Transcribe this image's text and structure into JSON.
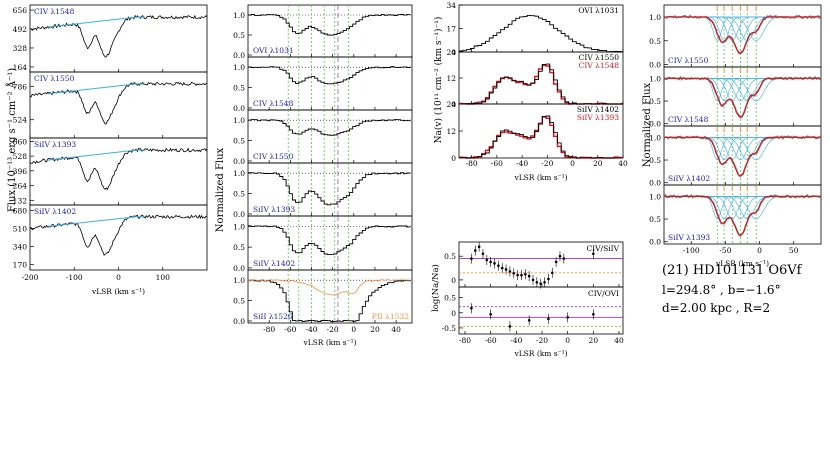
{
  "colors": {
    "data": "#000000",
    "fit": "#3aaee6",
    "blue_label": "#2020c0",
    "red": "#e0141e",
    "orange": "#ff8c3c",
    "green_dot": "#37c837",
    "purple": "#9b30c8",
    "grey": "#777777"
  },
  "caption": {
    "line1": "(21) HD101131 O6Vf",
    "line2": "l=294.8° , b=−1.6°",
    "line3": "d=2.00 kpc , R=2"
  },
  "chart_data": [
    {
      "type": "line",
      "title": "",
      "ylabel": "Flux (10⁻¹³ erg s⁻¹ cm⁻² Å⁻¹)",
      "xlabel": "vLSR (km s⁻¹)",
      "xlim": [
        -200,
        200
      ],
      "xticks": [
        -200,
        -100,
        0,
        100
      ],
      "panels": [
        {
          "label": "CIV λ1548",
          "yticks": [
            164,
            328,
            492,
            656
          ],
          "ylim": [
            120,
            700
          ]
        },
        {
          "label": "CIV λ1550",
          "yticks": [
            524,
            786
          ],
          "ylim": [
            380,
            900
          ]
        },
        {
          "label": "SiIV λ1393",
          "yticks": [
            132,
            264,
            396,
            528,
            660
          ],
          "ylim": [
            90,
            690
          ]
        },
        {
          "label": "SiIV λ1402",
          "yticks": [
            170,
            340,
            510,
            680
          ],
          "ylim": [
            120,
            730
          ]
        }
      ]
    },
    {
      "type": "line",
      "ylabel": "Normalized Flux",
      "xlabel": "vLSR (km s⁻¹)",
      "xlim": [
        -100,
        55
      ],
      "xticks": [
        -80,
        -60,
        -40,
        -20,
        0,
        20,
        40
      ],
      "panels": [
        {
          "label": "OVI λ1031"
        },
        {
          "label": "CIV λ1548"
        },
        {
          "label": "CIV λ1550"
        },
        {
          "label": "SiIV λ1393"
        },
        {
          "label": "SiIV λ1402"
        },
        {
          "label": "SiII λ1526",
          "label2": "PII λ1532"
        }
      ]
    },
    {
      "type": "line",
      "ylabel": "Na(v) (10¹¹ cm⁻² (km s⁻¹)⁻¹)",
      "xlabel": "vLSR (km s⁻¹)",
      "xlim": [
        -90,
        40
      ],
      "xticks": [
        -80,
        -60,
        -40,
        -20,
        0,
        20,
        40
      ],
      "panels": [
        {
          "labels": [
            "OVI λ1031"
          ],
          "yticks": [
            0,
            17,
            34
          ]
        },
        {
          "labels": [
            "CIV λ1550",
            "CIV λ1548"
          ],
          "yticks": [
            0,
            12,
            24
          ]
        },
        {
          "labels": [
            "SiIV λ1402",
            "SiIV λ1393"
          ],
          "yticks": [
            0,
            12,
            24
          ]
        }
      ]
    },
    {
      "type": "scatter",
      "ylabel": "log(Na/Na)",
      "xlabel": "vLSR (km s⁻¹)",
      "xlim": [
        -80,
        40
      ],
      "panels": [
        {
          "label": "CIV/SiIV",
          "yticks": [
            0.5,
            0.0
          ],
          "ylim": [
            -0.15,
            0.8
          ],
          "points": [
            [
              -75,
              0.45
            ],
            [
              -72,
              0.62
            ],
            [
              -69,
              0.7
            ],
            [
              -66,
              0.55
            ],
            [
              -63,
              0.42
            ],
            [
              -60,
              0.38
            ],
            [
              -57,
              0.35
            ],
            [
              -54,
              0.3
            ],
            [
              -51,
              0.25
            ],
            [
              -48,
              0.22
            ],
            [
              -45,
              0.18
            ],
            [
              -42,
              0.14
            ],
            [
              -39,
              0.1
            ],
            [
              -36,
              0.1
            ],
            [
              -33,
              0.12
            ],
            [
              -30,
              0.08
            ],
            [
              -27,
              0.0
            ],
            [
              -24,
              -0.05
            ],
            [
              -21,
              -0.08
            ],
            [
              -18,
              -0.05
            ],
            [
              -15,
              0.02
            ],
            [
              -12,
              0.15
            ],
            [
              -9,
              0.38
            ],
            [
              -6,
              0.5
            ],
            [
              -3,
              0.45
            ],
            [
              20,
              0.55
            ]
          ]
        },
        {
          "label": "CIV/OVI",
          "yticks": [
            0.5,
            0.0,
            -0.5
          ],
          "ylim": [
            -0.7,
            0.85
          ],
          "points": [
            [
              -75,
              0.15
            ],
            [
              -60,
              -0.05
            ],
            [
              -45,
              -0.45
            ],
            [
              -30,
              -0.25
            ],
            [
              -15,
              -0.2
            ],
            [
              0,
              -0.15
            ],
            [
              20,
              -0.05
            ]
          ]
        }
      ]
    },
    {
      "type": "line",
      "ylabel": "Normalized Flux",
      "xlabel": "vLSR (km s⁻¹)",
      "xlim": [
        -140,
        90
      ],
      "xticks": [
        -100,
        -50,
        0,
        50
      ],
      "panels": [
        {
          "label": "CIV λ1550"
        },
        {
          "label": "CIV λ1548"
        },
        {
          "label": "SiIV λ1402"
        },
        {
          "label": "SiIV λ1393"
        }
      ]
    }
  ]
}
